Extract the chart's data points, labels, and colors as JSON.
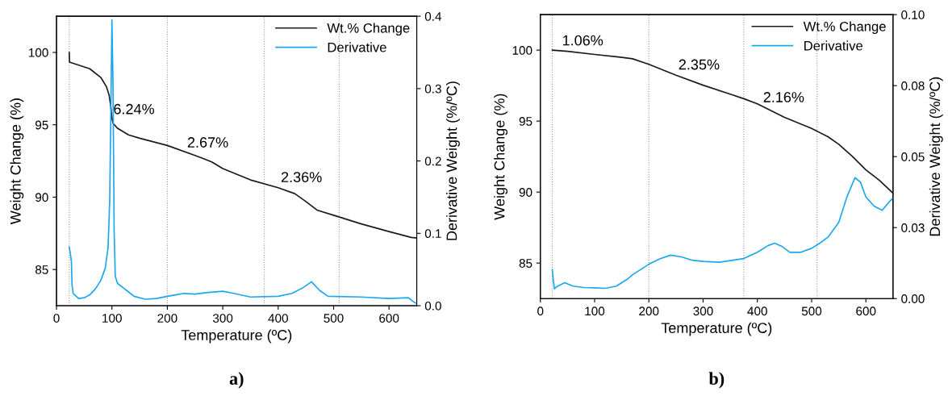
{
  "chart_data": [
    {
      "type": "line",
      "xlabel": "Temperature (ºC)",
      "ylabel": "Weight Change (%)",
      "y2label": "Derivative Weight (%/ºC)",
      "xlim": [
        0,
        650
      ],
      "xticks": [
        0,
        100,
        200,
        300,
        400,
        500,
        600
      ],
      "ylim": [
        82.5,
        102.5
      ],
      "yticks": [
        85,
        90,
        95,
        100
      ],
      "y2lim": [
        0,
        0.4
      ],
      "y2ticks": [
        {
          "value": 0,
          "label": "0.0"
        },
        {
          "value": 0.1,
          "label": "0.1"
        },
        {
          "value": 0.2,
          "label": "0.2"
        },
        {
          "value": 0.3,
          "label": "0.3"
        },
        {
          "value": 0.4,
          "label": "0.4"
        }
      ],
      "legend": "top right",
      "grid": false,
      "series": [
        {
          "name": "Wt.% Change",
          "color": "#1a1a1a",
          "x": [
            23,
            23.5,
            60,
            80,
            90,
            95,
            98,
            100,
            102,
            110,
            130,
            150,
            200,
            250,
            280,
            300,
            350,
            400,
            430,
            450,
            470,
            500,
            550,
            600,
            640,
            650
          ],
          "values": [
            100.0,
            99.33,
            98.87,
            98.27,
            97.64,
            97.04,
            96.25,
            95.46,
            95.1,
            94.76,
            94.3,
            94.07,
            93.57,
            92.88,
            92.44,
            91.98,
            91.19,
            90.65,
            90.24,
            89.7,
            89.11,
            88.75,
            88.15,
            87.62,
            87.22,
            87.18
          ]
        },
        {
          "name": "Derivative",
          "color": "#1aa7f0",
          "axis": "y2",
          "x": [
            23,
            25,
            27,
            28,
            30,
            40,
            50,
            60,
            70,
            80,
            88,
            93,
            96,
            98,
            100,
            102,
            104,
            106,
            110,
            120,
            130,
            140,
            160,
            180,
            200,
            215,
            230,
            250,
            270,
            300,
            320,
            350,
            400,
            425,
            445,
            460,
            475,
            490,
            550,
            600,
            635,
            645,
            650
          ],
          "values": [
            0.081,
            0.072,
            0.06,
            0.029,
            0.017,
            0.01,
            0.011,
            0.015,
            0.023,
            0.035,
            0.052,
            0.08,
            0.144,
            0.263,
            0.395,
            0.303,
            0.104,
            0.041,
            0.031,
            0.025,
            0.019,
            0.013,
            0.009,
            0.01,
            0.013,
            0.015,
            0.017,
            0.016,
            0.018,
            0.02,
            0.017,
            0.012,
            0.013,
            0.017,
            0.025,
            0.033,
            0.021,
            0.013,
            0.012,
            0.01,
            0.011,
            0.005,
            0.003
          ]
        }
      ],
      "ref_lines": [
        {
          "axis": "x",
          "value": 23,
          "color": "#999999",
          "line_style": "dotted"
        },
        {
          "axis": "x",
          "value": 200,
          "color": "#999999",
          "line_style": "dotted"
        },
        {
          "axis": "x",
          "value": 375,
          "color": "#999999",
          "line_style": "dotted"
        },
        {
          "axis": "x",
          "value": 510,
          "color": "#999999",
          "line_style": "dotted"
        }
      ],
      "annotations": [
        "6.24%",
        "2.67%",
        "2.36%",
        "a)"
      ]
    },
    {
      "type": "line",
      "xlabel": "Temperature (ºC)",
      "ylabel": "Weight Change (%)",
      "y2label": "Derivative Weight (%/ºC)",
      "xlim": [
        0,
        650
      ],
      "xticks": [
        0,
        100,
        200,
        300,
        400,
        500,
        600
      ],
      "ylim": [
        82.5,
        102.5
      ],
      "yticks": [
        85,
        90,
        95,
        100
      ],
      "y2lim": [
        0,
        0.1
      ],
      "y2ticks": [
        {
          "value": 0,
          "label": "0.00"
        },
        {
          "value": 0.025,
          "label": "0.03"
        },
        {
          "value": 0.05,
          "label": "0.05"
        },
        {
          "value": 0.075,
          "label": "0.08"
        },
        {
          "value": 0.1,
          "label": "0.10"
        }
      ],
      "legend": "top right",
      "grid": false,
      "series": [
        {
          "name": "Wt.% Change",
          "color": "#1a1a1a",
          "x": [
            22,
            50,
            100,
            150,
            170,
            200,
            250,
            300,
            350,
            375,
            400,
            450,
            500,
            530,
            550,
            575,
            600,
            625,
            650
          ],
          "values": [
            100.0,
            99.92,
            99.7,
            99.49,
            99.39,
            99.0,
            98.23,
            97.53,
            96.9,
            96.58,
            96.22,
            95.27,
            94.49,
            93.9,
            93.37,
            92.52,
            91.57,
            90.83,
            89.92
          ]
        },
        {
          "name": "Derivative",
          "color": "#1aa7f0",
          "axis": "y2",
          "x": [
            22,
            24,
            26,
            30,
            45,
            60,
            80,
            100,
            120,
            140,
            160,
            170,
            200,
            220,
            240,
            260,
            280,
            300,
            330,
            375,
            400,
            420,
            432,
            445,
            460,
            480,
            500,
            515,
            530,
            550,
            565,
            580,
            590,
            600,
            615,
            630,
            645,
            650
          ],
          "values": [
            0.0102,
            0.0063,
            0.0034,
            0.0042,
            0.0056,
            0.0044,
            0.0039,
            0.0038,
            0.0036,
            0.0044,
            0.0068,
            0.0084,
            0.0121,
            0.014,
            0.0153,
            0.0147,
            0.0135,
            0.0131,
            0.0128,
            0.0141,
            0.0163,
            0.0187,
            0.0195,
            0.0184,
            0.0163,
            0.0163,
            0.0177,
            0.0195,
            0.0216,
            0.0268,
            0.0358,
            0.0426,
            0.041,
            0.0358,
            0.0326,
            0.0311,
            0.0345,
            0.0353
          ]
        }
      ],
      "ref_lines": [
        {
          "axis": "x",
          "value": 22,
          "color": "#999999",
          "line_style": "dotted"
        },
        {
          "axis": "x",
          "value": 200,
          "color": "#999999",
          "line_style": "dotted"
        },
        {
          "axis": "x",
          "value": 375,
          "color": "#999999",
          "line_style": "dotted"
        },
        {
          "axis": "x",
          "value": 510,
          "color": "#999999",
          "line_style": "dotted"
        }
      ],
      "annotations": [
        "1.06%",
        "2.35%",
        "2.16%",
        "b)"
      ]
    }
  ]
}
